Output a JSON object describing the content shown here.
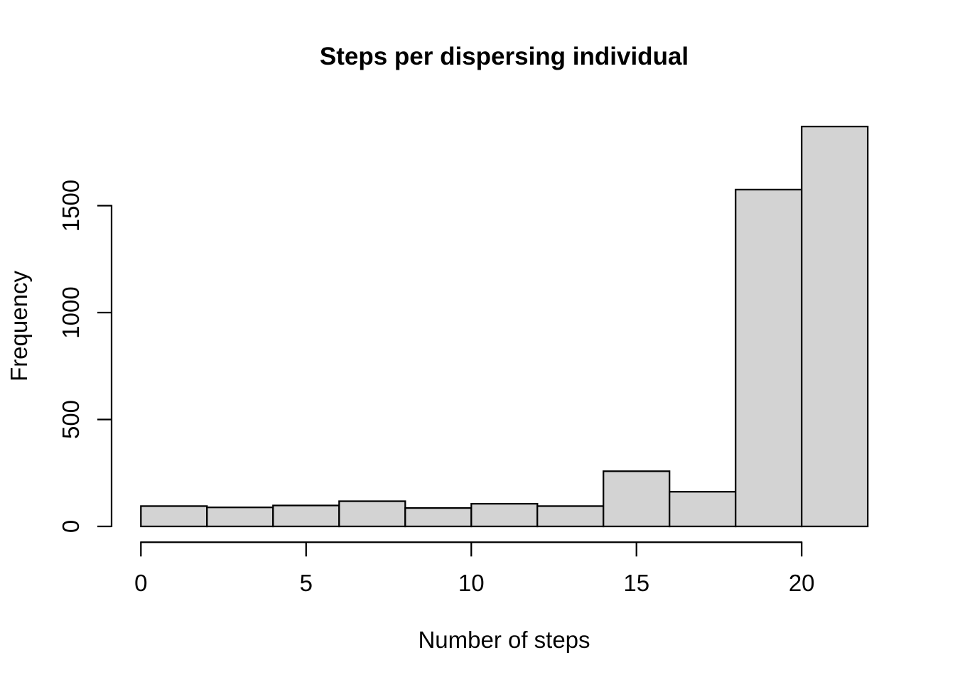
{
  "chart_data": {
    "type": "bar",
    "subtype": "histogram",
    "title": "Steps per dispersing individual",
    "xlabel": "Number of steps",
    "ylabel": "Frequency",
    "bin_width": 2,
    "bin_edges": [
      0,
      2,
      4,
      6,
      8,
      10,
      12,
      14,
      16,
      18,
      20,
      22
    ],
    "categories": [
      "0-2",
      "2-4",
      "4-6",
      "6-8",
      "8-10",
      "10-12",
      "12-14",
      "14-16",
      "16-18",
      "18-20",
      "20-22"
    ],
    "values": [
      95,
      89,
      98,
      118,
      86,
      106,
      95,
      258,
      162,
      1575,
      1870
    ],
    "x_ticks": [
      0,
      5,
      10,
      15,
      20
    ],
    "y_ticks": [
      0,
      500,
      1000,
      1500
    ],
    "xlim": [
      0,
      22
    ],
    "ylim": [
      0,
      1870
    ],
    "grid": false,
    "legend": null,
    "colors": {
      "bar_fill": "#d3d3d3",
      "bar_border": "#000000",
      "axis": "#000000",
      "text": "#000000",
      "background": "#ffffff"
    }
  }
}
